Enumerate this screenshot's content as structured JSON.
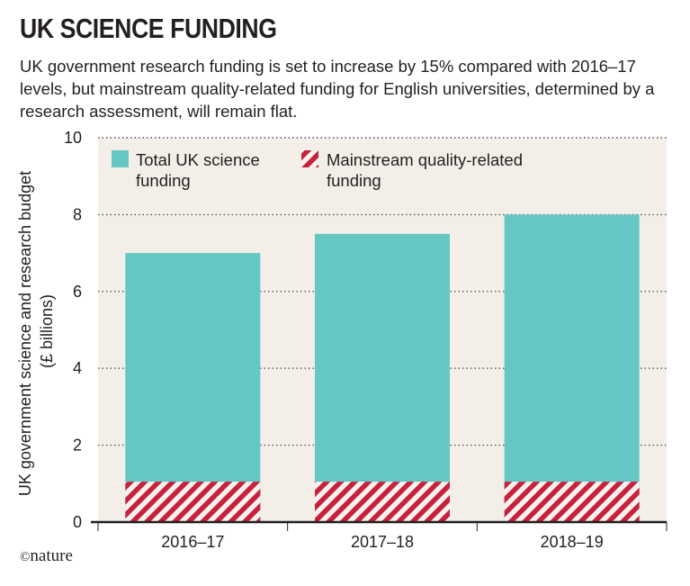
{
  "chart_data": {
    "type": "bar",
    "title": "UK SCIENCE FUNDING",
    "subtitle": "UK government research funding is set to increase by 15% compared with 2016–17 levels, but mainstream quality-related funding for English universities, determined by a research assessment, will remain flat.",
    "ylabel_lines": [
      "UK government science and research budget",
      "(£ billions)"
    ],
    "xlabel": "",
    "categories": [
      "2016–17",
      "2017–18",
      "2018–19"
    ],
    "series": [
      {
        "name": "Total UK science funding",
        "name_lines": [
          "Total UK science",
          "funding"
        ],
        "values": [
          7.0,
          7.5,
          8.0
        ],
        "color": "#66c6c3"
      },
      {
        "name": "Mainstream quality-related funding",
        "name_lines": [
          "Mainstream quality-related",
          "funding"
        ],
        "values": [
          1.05,
          1.05,
          1.05
        ],
        "color": "#c8203d",
        "pattern": "diagonal-stripes"
      }
    ],
    "ylim": [
      0,
      10
    ],
    "yticks": [
      "0",
      "2",
      "4",
      "6",
      "8",
      "10"
    ],
    "grid": true,
    "legend_position": "top-left",
    "background": "#f3efe8"
  },
  "credit": {
    "symbol": "©",
    "text": "nature"
  }
}
